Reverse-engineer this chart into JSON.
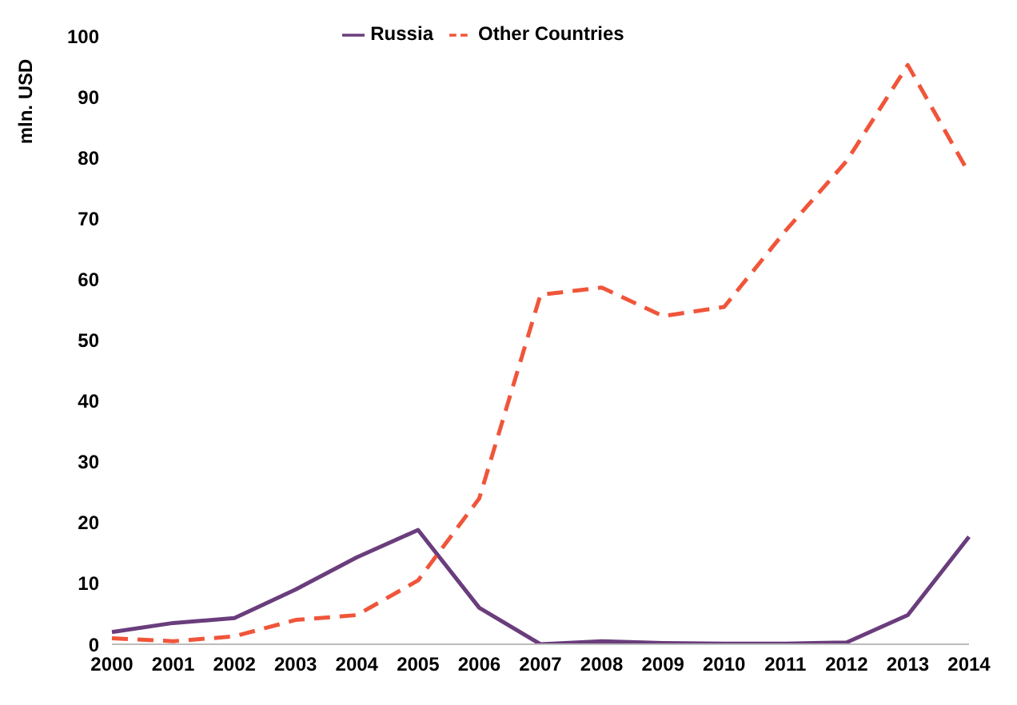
{
  "chart_data": {
    "type": "line",
    "ylabel": "mln. USD",
    "categories": [
      "2000",
      "2001",
      "2002",
      "2003",
      "2004",
      "2005",
      "2006",
      "2007",
      "2008",
      "2009",
      "2010",
      "2011",
      "2012",
      "2013",
      "2014"
    ],
    "series": [
      {
        "name": "Russia",
        "color": "#6a3d7c",
        "line_style": "solid",
        "values": [
          2,
          3.5,
          4.3,
          9,
          14.3,
          18.8,
          6,
          0,
          0.5,
          0.2,
          0.1,
          0.1,
          0.3,
          4.8,
          17.7
        ]
      },
      {
        "name": "Other Countries",
        "color": "#f0553a",
        "line_style": "dashed",
        "values": [
          1,
          0.5,
          1.3,
          4,
          4.8,
          10.5,
          24,
          57.5,
          58.7,
          54,
          55.5,
          68,
          79.5,
          95.3,
          77.5
        ]
      }
    ],
    "ylim": [
      0,
      100
    ],
    "yticks": [
      0,
      10,
      20,
      30,
      40,
      50,
      60,
      70,
      80,
      90,
      100
    ],
    "grid": false,
    "legend": "top",
    "marker": "none"
  }
}
